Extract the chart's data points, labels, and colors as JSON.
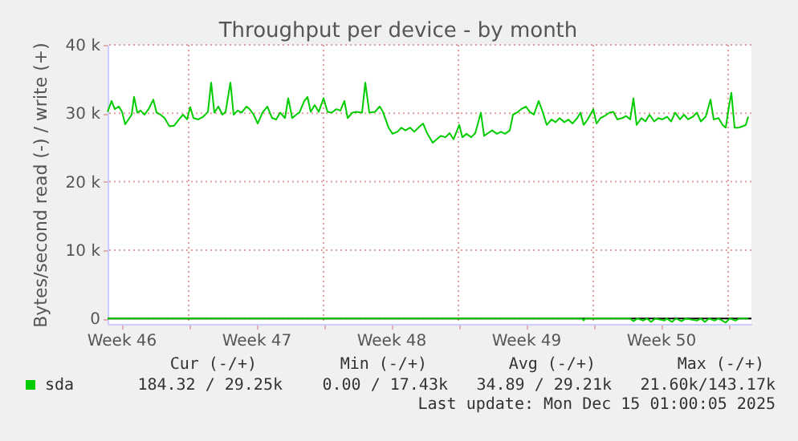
{
  "chart_data": {
    "type": "line",
    "title": "Throughput per device - by month",
    "ylabel": "Bytes/second read (-) / write (+)",
    "xlim": [
      "2025-11-11T19:00",
      "2025-12-15T05:00"
    ],
    "ylim": [
      -800,
      40000
    ],
    "xticks": [
      {
        "value": "2025-11-12T12:00",
        "label": "Week 46"
      },
      {
        "value": "2025-11-16T00:00",
        "label": null
      },
      {
        "value": "2025-11-19T12:00",
        "label": "Week 47"
      },
      {
        "value": "2025-11-23T00:00",
        "label": null
      },
      {
        "value": "2025-11-26T12:00",
        "label": "Week 48"
      },
      {
        "value": "2025-11-30T00:00",
        "label": null
      },
      {
        "value": "2025-12-03T12:00",
        "label": "Week 49"
      },
      {
        "value": "2025-12-07T00:00",
        "label": null
      },
      {
        "value": "2025-12-10T12:00",
        "label": "Week 50"
      },
      {
        "value": "2025-12-14T00:00",
        "label": null
      }
    ],
    "yticks": [
      0,
      {
        "value": 10000,
        "label": "10 k"
      },
      {
        "value": 20000,
        "label": "20 k"
      },
      {
        "value": 30000,
        "label": "30 k"
      },
      {
        "value": 40000,
        "label": "40 k"
      }
    ],
    "grid": true,
    "legend": "bottom",
    "line_style": "solid",
    "marker": "none",
    "ref_lines": [
      {
        "axis": "y",
        "value": 0,
        "color": "#000000"
      }
    ],
    "series": [
      {
        "name": "sda",
        "color": "#00cc00",
        "x": [
          "2025-11-11T19:00",
          "2025-11-12T00:00",
          "2025-11-12T04:00",
          "2025-11-12T09:00",
          "2025-11-12T13:00",
          "2025-11-12T17:00",
          "2025-11-12T21:00",
          "2025-11-13T01:00",
          "2025-11-13T04:00",
          "2025-11-13T08:00",
          "2025-11-13T12:00",
          "2025-11-13T17:00",
          "2025-11-13T22:00",
          "2025-11-14T04:00",
          "2025-11-14T08:00",
          "2025-11-14T13:00",
          "2025-11-14T18:00",
          "2025-11-15T00:00",
          "2025-11-15T06:00",
          "2025-11-15T12:00",
          "2025-11-15T17:00",
          "2025-11-15T22:00",
          "2025-11-16T02:00",
          "2025-11-16T06:00",
          "2025-11-16T12:00",
          "2025-11-16T18:00",
          "2025-11-17T00:00",
          "2025-11-17T04:00",
          "2025-11-17T08:00",
          "2025-11-17T13:00",
          "2025-11-17T18:00",
          "2025-11-17T22:00",
          "2025-11-18T04:00",
          "2025-11-18T08:00",
          "2025-11-18T13:00",
          "2025-11-18T18:00",
          "2025-11-19T00:00",
          "2025-11-19T04:00",
          "2025-11-19T09:00",
          "2025-11-19T14:00",
          "2025-11-19T20:00",
          "2025-11-20T02:00",
          "2025-11-20T08:00",
          "2025-11-20T13:00",
          "2025-11-20T18:00",
          "2025-11-21T00:00",
          "2025-11-21T04:00",
          "2025-11-21T09:00",
          "2025-11-21T14:00",
          "2025-11-21T18:00",
          "2025-11-22T00:00",
          "2025-11-22T04:00",
          "2025-11-22T08:00",
          "2025-11-22T13:00",
          "2025-11-22T18:00",
          "2025-11-23T00:00",
          "2025-11-23T05:00",
          "2025-11-23T10:00",
          "2025-11-23T16:00",
          "2025-11-23T21:00",
          "2025-11-24T02:00",
          "2025-11-24T06:00",
          "2025-11-24T12:00",
          "2025-11-24T17:00",
          "2025-11-25T00:00",
          "2025-11-25T04:00",
          "2025-11-25T09:00",
          "2025-11-25T16:00",
          "2025-11-25T22:00",
          "2025-11-26T02:00",
          "2025-11-26T09:00",
          "2025-11-26T14:00",
          "2025-11-26T20:00",
          "2025-11-27T01:00",
          "2025-11-27T06:00",
          "2025-11-27T12:00",
          "2025-11-27T17:00",
          "2025-11-27T22:00",
          "2025-11-28T04:00",
          "2025-11-28T09:00",
          "2025-11-28T16:00",
          "2025-11-28T21:00",
          "2025-11-29T02:00",
          "2025-11-29T08:00",
          "2025-11-29T13:00",
          "2025-11-29T18:00",
          "2025-11-30T01:00",
          "2025-11-30T05:00",
          "2025-11-30T10:00",
          "2025-11-30T16:00",
          "2025-11-30T21:00",
          "2025-12-01T04:00",
          "2025-12-01T08:00",
          "2025-12-01T13:00",
          "2025-12-01T18:00",
          "2025-12-02T00:00",
          "2025-12-02T05:00",
          "2025-12-02T10:00",
          "2025-12-02T16:00",
          "2025-12-02T20:00",
          "2025-12-03T01:00",
          "2025-12-03T06:00",
          "2025-12-03T12:00",
          "2025-12-03T17:00",
          "2025-12-03T22:00",
          "2025-12-04T04:00",
          "2025-12-04T09:00",
          "2025-12-04T14:00",
          "2025-12-04T20:00",
          "2025-12-05T01:00",
          "2025-12-05T06:00",
          "2025-12-05T12:00",
          "2025-12-05T17:00",
          "2025-12-05T22:00",
          "2025-12-06T04:00",
          "2025-12-06T08:00",
          "2025-12-06T12:00",
          "2025-12-06T17:00",
          "2025-12-07T00:00",
          "2025-12-07T04:00",
          "2025-12-07T09:00",
          "2025-12-07T14:00",
          "2025-12-07T20:00",
          "2025-12-08T01:00",
          "2025-12-08T06:00",
          "2025-12-08T12:00",
          "2025-12-08T17:00",
          "2025-12-08T22:00",
          "2025-12-09T02:00",
          "2025-12-09T06:00",
          "2025-12-09T12:00",
          "2025-12-09T17:00",
          "2025-12-09T22:00",
          "2025-12-10T04:00",
          "2025-12-10T09:00",
          "2025-12-10T14:00",
          "2025-12-10T20:00",
          "2025-12-11T01:00",
          "2025-12-11T06:00",
          "2025-12-11T12:00",
          "2025-12-11T17:00",
          "2025-12-11T22:00",
          "2025-12-12T04:00",
          "2025-12-12T09:00",
          "2025-12-12T14:00",
          "2025-12-12T20:00",
          "2025-12-13T02:00",
          "2025-12-13T06:00",
          "2025-12-13T12:00",
          "2025-12-13T17:00",
          "2025-12-13T21:00",
          "2025-12-14T01:00",
          "2025-12-14T04:00",
          "2025-12-14T08:00",
          "2025-12-14T13:00",
          "2025-12-14T18:00",
          "2025-12-14T22:00",
          "2025-12-15T01:00"
        ],
        "values": [
          30200,
          31800,
          30600,
          31000,
          30200,
          28400,
          29100,
          29800,
          32400,
          30100,
          30400,
          29800,
          30600,
          32000,
          30100,
          29800,
          29300,
          28100,
          28200,
          29100,
          29800,
          29100,
          30900,
          29300,
          29100,
          29500,
          30200,
          34500,
          30100,
          31000,
          29800,
          30200,
          34500,
          29800,
          30400,
          30100,
          31000,
          30600,
          29800,
          28500,
          30100,
          31000,
          29300,
          29100,
          30100,
          29300,
          32200,
          29300,
          29800,
          30100,
          31800,
          32400,
          30200,
          31200,
          30200,
          32200,
          30200,
          30100,
          30600,
          30400,
          31800,
          29300,
          30100,
          30200,
          30100,
          34500,
          30100,
          30200,
          31000,
          30200,
          27900,
          27000,
          27300,
          27900,
          27500,
          27900,
          27300,
          27900,
          28500,
          27100,
          25700,
          26200,
          26700,
          26500,
          27100,
          26200,
          28300,
          26500,
          27000,
          26500,
          27100,
          30100,
          26700,
          27100,
          27500,
          27000,
          27300,
          27000,
          27500,
          29800,
          30100,
          30600,
          31000,
          30200,
          29800,
          31800,
          30200,
          28300,
          29100,
          28700,
          29300,
          28700,
          29100,
          28500,
          29300,
          30100,
          28300,
          29100,
          30600,
          28500,
          29300,
          29600,
          30100,
          30200,
          29100,
          29300,
          29600,
          29100,
          32200,
          28300,
          29300,
          28800,
          29800,
          28800,
          29300,
          29100,
          29500,
          28800,
          30100,
          29100,
          29800,
          29100,
          29500,
          30100,
          28800,
          29500,
          32000,
          29100,
          29300,
          28300,
          27900,
          31000,
          33000,
          27900,
          27900,
          28100,
          28300,
          29500
        ]
      },
      {
        "color": "#00cc00",
        "x": [
          "2025-11-11T19:00",
          "2025-12-06T10:00",
          "2025-12-06T12:00",
          "2025-12-06T14:00",
          "2025-12-08T22:00",
          "2025-12-09T02:00",
          "2025-12-09T07:00",
          "2025-12-09T14:00",
          "2025-12-09T19:00",
          "2025-12-10T00:00",
          "2025-12-10T05:00",
          "2025-12-10T17:00",
          "2025-12-10T19:00",
          "2025-12-11T02:00",
          "2025-12-11T07:00",
          "2025-12-11T14:00",
          "2025-12-11T19:00",
          "2025-12-12T09:00",
          "2025-12-12T14:00",
          "2025-12-12T19:00",
          "2025-12-13T00:00",
          "2025-12-13T07:00",
          "2025-12-13T12:00",
          "2025-12-13T21:00",
          "2025-12-14T02:00",
          "2025-12-14T09:00",
          "2025-12-14T14:00",
          "2025-12-15T01:00"
        ],
        "values": [
          0,
          0,
          -300,
          0,
          0,
          -400,
          0,
          -300,
          0,
          -500,
          0,
          -300,
          0,
          -500,
          0,
          -400,
          0,
          -300,
          0,
          -500,
          0,
          -300,
          0,
          -600,
          0,
          -300,
          0,
          0
        ]
      }
    ],
    "annotations": [
      "Cur (-/+)",
      "Min (-/+)",
      "Avg (-/+)",
      "Max (-/+)",
      "184.32 / 29.25k",
      "0.00 / 17.43k",
      "34.89 / 29.21k",
      "21.60k/143.17k",
      "Last update: Mon Dec 15 01:00:05 2025"
    ]
  }
}
